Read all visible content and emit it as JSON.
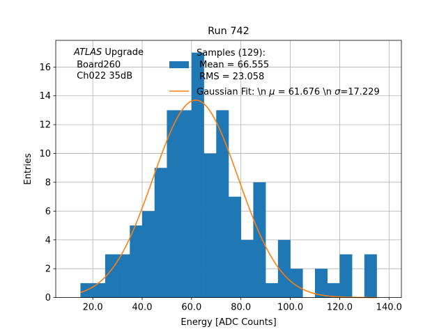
{
  "chart_data": {
    "type": "bar",
    "title": "Run 742",
    "xlabel": "Energy [ADC Counts]",
    "ylabel": "Entries",
    "xlim": [
      5,
      145
    ],
    "ylim": [
      0,
      17.85
    ],
    "grid": true,
    "x_ticks": [
      20,
      40,
      60,
      80,
      100,
      120,
      140
    ],
    "x_tick_labels": [
      "20.0",
      "40.0",
      "60.0",
      "80.0",
      "100.0",
      "120.0",
      "140.0"
    ],
    "y_ticks": [
      0,
      2,
      4,
      6,
      8,
      10,
      12,
      14,
      16
    ],
    "y_tick_labels": [
      "0",
      "2",
      "4",
      "6",
      "8",
      "10",
      "12",
      "14",
      "16"
    ],
    "annotation": {
      "italic": "ATLAS",
      "rest": " Upgrade",
      "line2": " Board260",
      "line3": " Ch022 35dB"
    },
    "histogram": {
      "name_lines": [
        "Samples (129):",
        " Mean = 66.555",
        " RMS = 23.058"
      ],
      "color": "#1f77b4",
      "bin_edges": [
        15,
        20,
        25,
        30,
        35,
        40,
        45,
        50,
        55,
        60,
        65,
        70,
        75,
        80,
        85,
        90,
        95,
        100,
        105,
        110,
        115,
        120,
        125,
        130,
        135
      ],
      "counts": [
        1,
        1,
        3,
        3,
        5,
        6,
        9,
        13,
        13,
        17,
        10,
        13,
        7,
        4,
        8,
        1,
        4,
        2,
        0,
        2,
        1,
        3,
        0,
        3
      ]
    },
    "fit": {
      "name": "Gaussian Fit: \\n $\\mu$ = 61.676 \\n $\\sigma$=17.229",
      "name_parts": [
        "Gaussian Fit: \\n ",
        "μ",
        " = 61.676 \\n ",
        "σ",
        "=17.229"
      ],
      "color": "#ff7f0e",
      "type": "gaussian",
      "amplitude": 13.7,
      "mu": 61.676,
      "sigma": 17.229,
      "x_range": [
        15,
        135
      ]
    },
    "legend_location": "top-center"
  }
}
